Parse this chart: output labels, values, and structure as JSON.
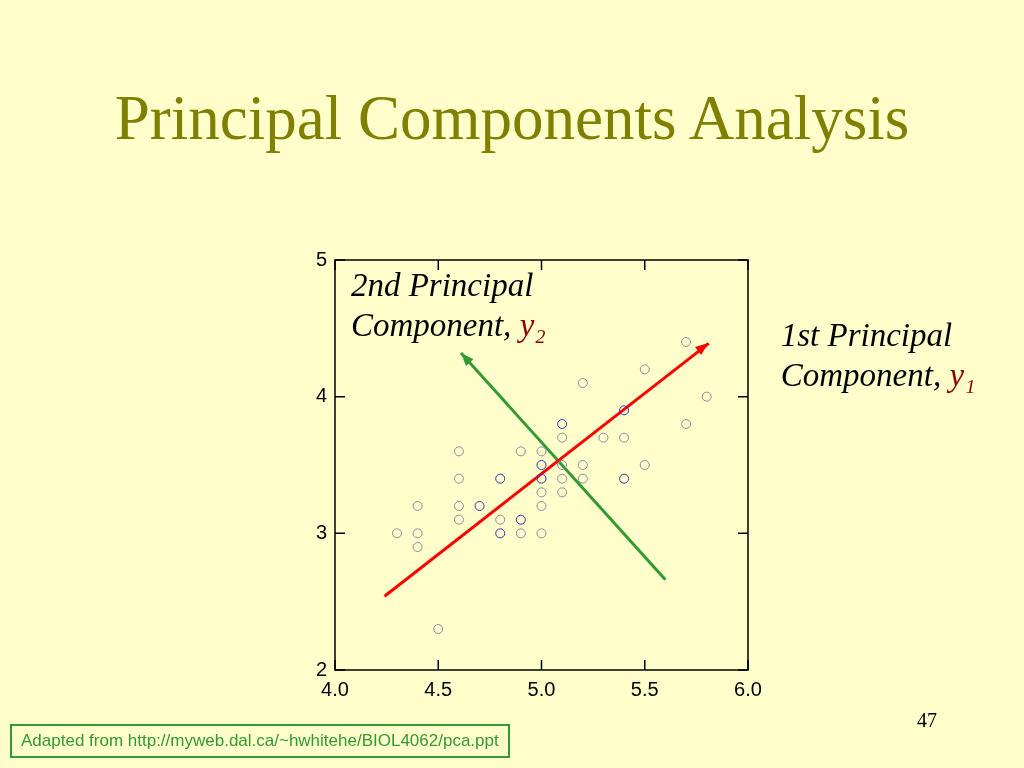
{
  "chart_data": {
    "type": "scatter",
    "title": "Principal Components Analysis",
    "annotations": [
      "Adapted from http://myweb.dal.ca/~hwhitehe/BIOL4062/pca.ppt",
      "47"
    ],
    "xlim": [
      4,
      6
    ],
    "ylim": [
      2,
      5
    ],
    "xticks": [
      {
        "value": 4,
        "label": "4.0"
      },
      {
        "value": 4.5,
        "label": "4.5"
      },
      {
        "value": 5,
        "label": "5.0"
      },
      {
        "value": 5.5,
        "label": "5.5"
      },
      {
        "value": 6,
        "label": "6.0"
      }
    ],
    "yticks": [
      2,
      3,
      4,
      5
    ],
    "series": [
      {
        "marker": "circle",
        "colors": [
          "#8c8ca6",
          "#8c8ca6",
          "#8c8ca6",
          "#8c8ca6",
          "#3333b0",
          "#3333b0",
          "#8c8ca6",
          "#8c8ca6",
          "#8c8ca6",
          "#8c8ca6",
          "#8c8ca6",
          "#8c8ca6",
          "#8c8ca6",
          "#3333b0",
          "#8c8ca6",
          "#8c8ca6",
          "#8c8ca6",
          "#8c8ca6",
          "#3333b0",
          "#3333b0",
          "#8c8ca6",
          "#8c8ca6",
          "#3333b0",
          "#8c8ca6",
          "#8c8ca6",
          "#8c8ca6",
          "#8c8ca6",
          "#3333b0",
          "#8c8ca6",
          "#8c8ca6",
          "#8c8ca6",
          "#3333b0",
          "#8c8ca6",
          "#8c8ca6",
          "#3333b0",
          "#8c8ca6",
          "#8c8ca6",
          "#8c8ca6",
          "#8c8ca6"
        ],
        "x": [
          5.7,
          5.5,
          5.2,
          5.8,
          5.4,
          5.1,
          5.7,
          5.1,
          5.3,
          5.4,
          4.6,
          4.9,
          5.0,
          5.0,
          5.1,
          5.2,
          5.5,
          4.6,
          4.8,
          5.0,
          5.1,
          5.2,
          5.4,
          5.0,
          5.1,
          4.4,
          4.6,
          4.7,
          5.0,
          4.6,
          4.8,
          4.9,
          4.3,
          4.4,
          4.8,
          4.9,
          5.0,
          4.4,
          4.5
        ],
        "values": [
          4.4,
          4.2,
          4.1,
          4.0,
          3.9,
          3.8,
          3.8,
          3.7,
          3.7,
          3.7,
          3.6,
          3.6,
          3.6,
          3.5,
          3.5,
          3.5,
          3.5,
          3.4,
          3.4,
          3.4,
          3.4,
          3.4,
          3.4,
          3.3,
          3.3,
          3.2,
          3.2,
          3.2,
          3.2,
          3.1,
          3.1,
          3.1,
          3.0,
          3.0,
          3.0,
          3.0,
          3.0,
          2.9,
          2.3
        ]
      },
      {
        "type": "line",
        "name": "1st Principal Component, y₁",
        "color": "#ff0000",
        "x": [
          4.24,
          5.81
        ],
        "values": [
          2.54,
          4.39
        ]
      },
      {
        "type": "line",
        "name": "2nd Principal Component, y₂",
        "color": "#339933",
        "x": [
          5.6,
          4.61
        ],
        "values": [
          2.66,
          4.32
        ]
      }
    ]
  }
}
